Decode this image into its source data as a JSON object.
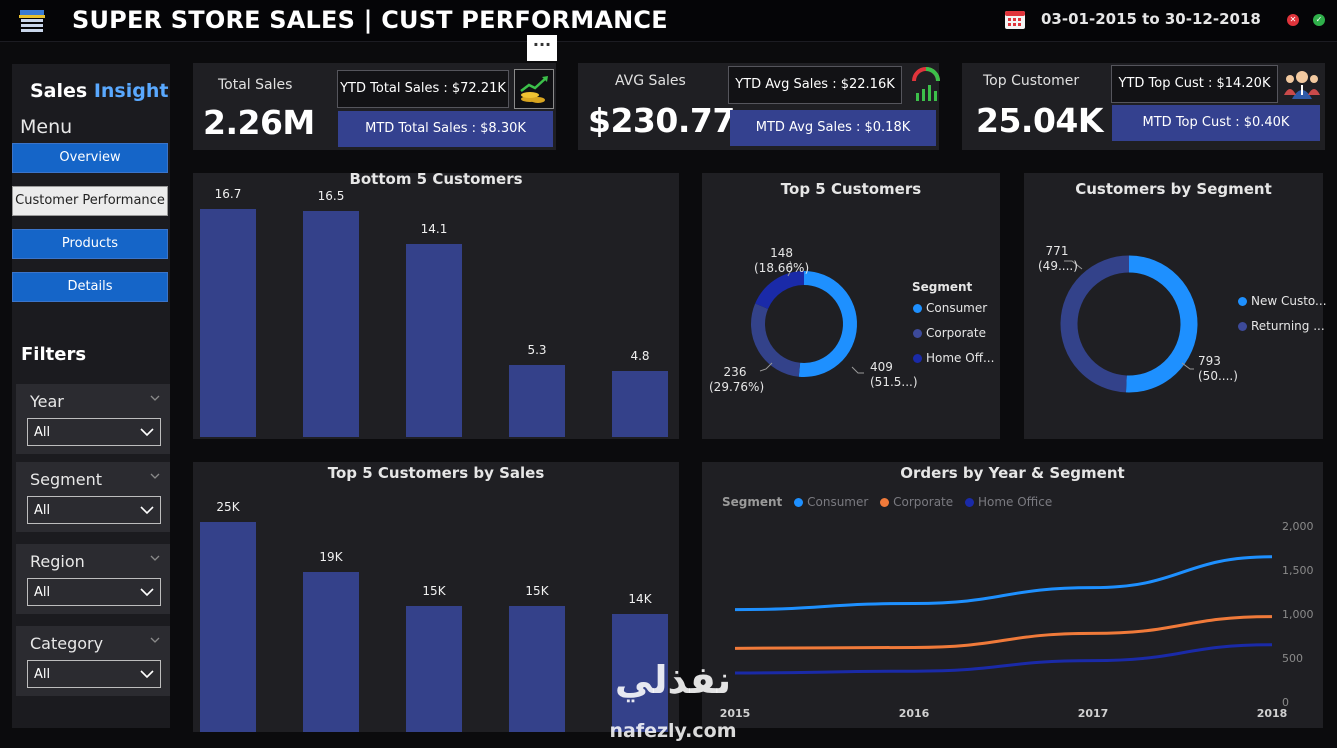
{
  "header": {
    "title": "SUPER STORE SALES | CUST PERFORMANCE",
    "date_range": "03-01-2015 to 30-12-2018",
    "app_icon": "store-icon",
    "calendar_icon": "calendar-icon",
    "close_glyph": "✕",
    "ok_glyph": "✓"
  },
  "sidebar": {
    "brand_main": "Sales ",
    "brand_accent": "Insight",
    "menu_label": "Menu",
    "nav": [
      {
        "label": "Overview",
        "active": false
      },
      {
        "label": "Customer Performance",
        "active": true
      },
      {
        "label": "Products",
        "active": false
      },
      {
        "label": "Details",
        "active": false
      }
    ],
    "filters_label": "Filters",
    "filters": [
      {
        "label": "Year",
        "value": "All"
      },
      {
        "label": "Segment",
        "value": "All"
      },
      {
        "label": "Region",
        "value": "All"
      },
      {
        "label": "Category",
        "value": "All"
      }
    ]
  },
  "more_button": "···",
  "kpis": {
    "total_sales": {
      "label": "Total Sales",
      "value": "2.26M",
      "ytd": "YTD Total Sales : $72.21K",
      "mtd": "MTD Total Sales : $8.30K",
      "icon": "money-growth-icon"
    },
    "avg_sales": {
      "label": "AVG Sales",
      "value": "$230.77",
      "ytd": "YTD Avg Sales : $22.16K",
      "mtd": "MTD Avg Sales : $0.18K",
      "icon": "gauge-chart-icon"
    },
    "top_customer": {
      "label": "Top Customer",
      "value": "25.04K",
      "ytd": "YTD Top Cust : $14.20K",
      "mtd": "MTD Top Cust : $0.40K",
      "icon": "customer-group-icon"
    }
  },
  "colors": {
    "bar": "#34418a",
    "consumer": "#1e90ff",
    "corporate": "#33428a",
    "home_office": "#1a2aa8",
    "new": "#1e90ff",
    "returning": "#33428a",
    "line_corporate": "#f07a3a",
    "nav_button": "#1565c8"
  },
  "chart_data": [
    {
      "type": "bar",
      "title": "Bottom 5 Customers",
      "values": [
        16.7,
        16.5,
        14.1,
        5.3,
        4.8
      ],
      "data_labels": [
        "16.7",
        "16.5",
        "14.1",
        "5.3",
        "4.8"
      ],
      "ylim": [
        0,
        18.5
      ]
    },
    {
      "type": "pie",
      "title": "Top 5 Customers",
      "legend_title": "Segment",
      "slices": [
        {
          "name": "Consumer",
          "value": 409,
          "label_value": "409",
          "label_pct": "(51.5...)"
        },
        {
          "name": "Corporate",
          "value": 236,
          "label_value": "236",
          "label_pct": "(29.76%)"
        },
        {
          "name": "Home Off...",
          "value": 148,
          "label_value": "148",
          "label_pct": "(18.66%)"
        }
      ]
    },
    {
      "type": "pie",
      "title": "Customers by Segment",
      "slices": [
        {
          "name": "New Custo...",
          "value": 793,
          "label_value": "793",
          "label_pct": "(50....)"
        },
        {
          "name": "Returning ...",
          "value": 771,
          "label_value": "771",
          "label_pct": "(49....)"
        }
      ]
    },
    {
      "type": "bar",
      "title": "Top 5 Customers by Sales",
      "values": [
        25000,
        19000,
        15000,
        15000,
        14000
      ],
      "data_labels": [
        "25K",
        "19K",
        "15K",
        "15K",
        "14K"
      ],
      "ylim": [
        0,
        27500
      ]
    },
    {
      "type": "line",
      "title": "Orders by Year & Segment",
      "legend_title": "Segment",
      "x": [
        "2015",
        "2016",
        "2017",
        "2018"
      ],
      "ylim": [
        0,
        2000
      ],
      "yticks": [
        "0",
        "500",
        "1,000",
        "1,500",
        "2,000"
      ],
      "series": [
        {
          "name": "Consumer",
          "values": [
            1050,
            1120,
            1300,
            1650
          ]
        },
        {
          "name": "Corporate",
          "values": [
            610,
            620,
            780,
            970
          ]
        },
        {
          "name": "Home Office",
          "values": [
            330,
            350,
            470,
            650
          ]
        }
      ]
    }
  ],
  "watermark": {
    "arabic": "نفذلي",
    "latin": "nafezly.com"
  }
}
